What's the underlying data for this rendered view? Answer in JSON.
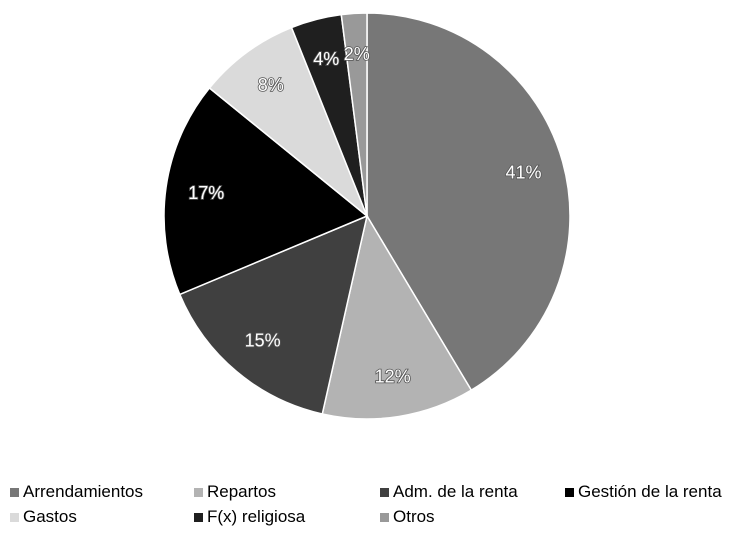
{
  "chart_data": {
    "type": "pie",
    "title": "",
    "legend_position": "bottom",
    "slices": [
      {
        "label": "Arrendamientos",
        "value": 41,
        "display": "41%",
        "color": "#777777"
      },
      {
        "label": "Repartos",
        "value": 12,
        "display": "12%",
        "color": "#b3b3b3"
      },
      {
        "label": "Adm. de la renta",
        "value": 15,
        "display": "15%",
        "color": "#404040"
      },
      {
        "label": "Gestión de la renta",
        "value": 17,
        "display": "17%",
        "color": "#000000"
      },
      {
        "label": "Gastos",
        "value": 8,
        "display": "8%",
        "color": "#dadada"
      },
      {
        "label": "F(x) religiosa",
        "value": 4,
        "display": "4%",
        "color": "#1f1f1f"
      },
      {
        "label": "Otros",
        "value": 2,
        "display": "2%",
        "color": "#999999"
      }
    ]
  }
}
